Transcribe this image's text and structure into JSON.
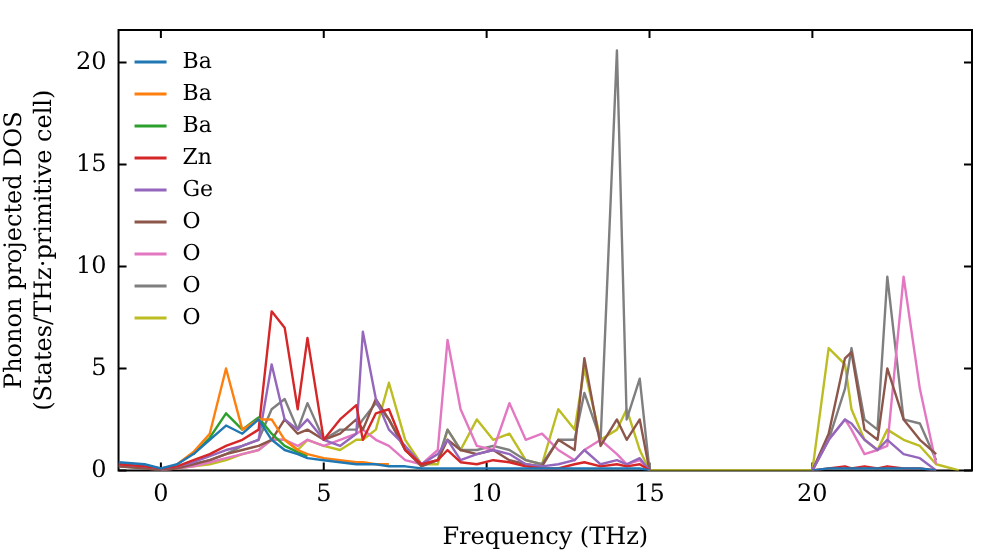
{
  "chart_data": {
    "type": "line",
    "xlabel": "Frequency (THz)",
    "ylabel": "Phonon projected DOS\n(States/THz·primitive cell)",
    "x": [
      -1.3,
      -0.5,
      0,
      0.5,
      1,
      1.5,
      2,
      2.5,
      3,
      3.4,
      3.8,
      4.2,
      4.5,
      5,
      5.5,
      6,
      6.2,
      6.6,
      7,
      7.5,
      8,
      8.5,
      8.8,
      9.2,
      9.7,
      10.2,
      10.7,
      11.2,
      11.7,
      12.2,
      12.7,
      13,
      13.5,
      14,
      14.3,
      14.7,
      15,
      17.5,
      20,
      20.5,
      21,
      21.2,
      21.6,
      22,
      22.3,
      22.8,
      23.3,
      23.8,
      24.5
    ],
    "xlim": [
      -1.3,
      24.9
    ],
    "xticks": [
      0,
      5,
      10,
      15,
      20
    ],
    "ylim": [
      0,
      21.6
    ],
    "yticks": [
      0,
      5,
      10,
      15,
      20
    ],
    "grid": false,
    "legend": "top left",
    "marker": "none",
    "line_style": "solid",
    "series": [
      {
        "name": "Ba",
        "color": "#1f77b4",
        "values": [
          0.4,
          0.3,
          0.1,
          0.3,
          0.8,
          1.5,
          2.2,
          1.8,
          2.5,
          1.5,
          1,
          0.8,
          0.6,
          0.5,
          0.4,
          0.3,
          0.3,
          0.3,
          0.2,
          0.2,
          0.1,
          0.1,
          0.1,
          0.1,
          0.1,
          0.1,
          0.1,
          0.1,
          0.1,
          0.1,
          0.1,
          0.1,
          0.1,
          0.1,
          0.1,
          0.1,
          0,
          null,
          0,
          0.1,
          0.1,
          0.1,
          0.1,
          0.1,
          0.1,
          0.1,
          0.1,
          0,
          null
        ]
      },
      {
        "name": "Ba",
        "color": "#ff7f0e",
        "values": [
          null,
          null,
          null,
          0.3,
          0.9,
          1.8,
          5,
          2,
          2.5,
          2.5,
          1.5,
          1,
          0.8,
          0.6,
          0.5,
          0.4,
          0.4,
          0.3,
          0.3,
          null,
          null,
          null,
          null,
          null,
          null,
          null,
          null,
          null,
          null,
          null,
          null,
          null,
          null,
          null,
          null,
          null,
          null,
          null,
          null,
          null,
          null,
          null,
          null,
          null,
          null,
          null,
          null,
          null,
          null
        ]
      },
      {
        "name": "Ba",
        "color": "#2ca02c",
        "values": [
          null,
          null,
          null,
          null,
          0.8,
          1.6,
          2.8,
          2,
          2.6,
          1.8,
          1.2,
          0.9,
          0.7,
          null,
          null,
          null,
          null,
          null,
          null,
          null,
          null,
          null,
          null,
          null,
          null,
          null,
          null,
          null,
          null,
          null,
          null,
          null,
          null,
          null,
          null,
          null,
          null,
          null,
          null,
          null,
          null,
          null,
          null,
          null,
          null,
          null,
          null,
          null,
          null
        ]
      },
      {
        "name": "Zn",
        "color": "#d62728",
        "values": [
          0.3,
          0.2,
          0.1,
          0.2,
          0.5,
          0.8,
          1.2,
          1.5,
          2,
          7.8,
          7,
          3,
          6.5,
          1.5,
          2.5,
          3.2,
          1.5,
          2.8,
          3,
          1,
          0.3,
          0.5,
          1,
          0.4,
          0.3,
          0.5,
          0.4,
          0.2,
          0.1,
          0.1,
          0.3,
          0.4,
          0.2,
          0.3,
          0.2,
          0.3,
          0,
          null,
          0,
          0.1,
          0.2,
          0.1,
          0.2,
          0.1,
          0.2,
          0.1,
          0.1,
          0,
          null
        ]
      },
      {
        "name": "Ge",
        "color": "#9467bd",
        "values": [
          0.3,
          0.2,
          0.1,
          0.2,
          0.4,
          0.7,
          1,
          1.2,
          1.5,
          5.2,
          2.5,
          2,
          2.5,
          1.5,
          1.2,
          1.8,
          6.8,
          3.5,
          2,
          1.2,
          0.3,
          0.8,
          1.5,
          0.5,
          0.8,
          1,
          0.8,
          0.3,
          0.2,
          0.3,
          0.5,
          1,
          0.3,
          0.5,
          0.3,
          0.6,
          0,
          null,
          0,
          1.5,
          2.5,
          2.3,
          1.5,
          1,
          1.5,
          0.8,
          0.6,
          0,
          null
        ]
      },
      {
        "name": "O",
        "color": "#8c564b",
        "values": [
          0.2,
          0.1,
          0,
          0.1,
          0.3,
          0.5,
          0.8,
          1,
          1.2,
          1.5,
          2.5,
          1.8,
          2,
          1.5,
          1.8,
          2.5,
          2,
          3.5,
          2.5,
          1,
          0.2,
          0.5,
          1.5,
          1,
          0.8,
          1,
          0.5,
          0.3,
          0.2,
          1.5,
          1,
          5.5,
          1.2,
          2.5,
          1.5,
          2.5,
          0,
          null,
          0,
          1.8,
          5.5,
          5.8,
          2,
          1.5,
          5,
          2.5,
          1.5,
          0.8,
          null
        ]
      },
      {
        "name": "O",
        "color": "#e377c2",
        "values": [
          null,
          null,
          0,
          0.1,
          0.2,
          0.4,
          0.6,
          0.8,
          1,
          1.5,
          1.5,
          1.2,
          1.5,
          1.2,
          1.5,
          1.8,
          2,
          1.5,
          1.2,
          0.5,
          0.3,
          1,
          6.4,
          3,
          1.2,
          1,
          3.3,
          1.5,
          1.8,
          1,
          0.5,
          1,
          1.5,
          0.8,
          0.3,
          0.5,
          0,
          null,
          0,
          1.5,
          2.5,
          2,
          0.8,
          1,
          1.2,
          9.5,
          4,
          0.3,
          null
        ]
      },
      {
        "name": "O",
        "color": "#7f7f7f",
        "values": [
          0.2,
          0.1,
          0,
          0.1,
          0.3,
          0.5,
          0.8,
          1.2,
          1.5,
          3,
          3.5,
          2,
          3.3,
          1.5,
          2,
          2,
          2.5,
          3.3,
          2.5,
          1,
          0.3,
          0.5,
          2,
          1,
          1,
          1.2,
          1,
          0.5,
          0.3,
          1.5,
          1.5,
          3.8,
          1.5,
          20.6,
          2.5,
          4.5,
          0,
          null,
          0,
          1.5,
          4,
          6,
          2.5,
          2,
          9.5,
          2.5,
          2.3,
          0.5,
          null
        ]
      },
      {
        "name": "O",
        "color": "#bcbd22",
        "values": [
          null,
          null,
          null,
          0.1,
          0.2,
          0.3,
          0.5,
          0.8,
          1,
          1.5,
          1.5,
          1,
          1.5,
          1.2,
          1,
          1.5,
          1.5,
          2,
          4.3,
          1.5,
          0.3,
          0.3,
          2,
          1,
          2.5,
          1.5,
          1.8,
          0.5,
          0.3,
          3,
          2,
          5,
          1.5,
          2,
          3,
          1,
          0,
          0,
          0,
          6,
          5.2,
          3,
          1.5,
          1,
          2,
          1.5,
          1.2,
          0.3,
          0
        ]
      }
    ]
  }
}
